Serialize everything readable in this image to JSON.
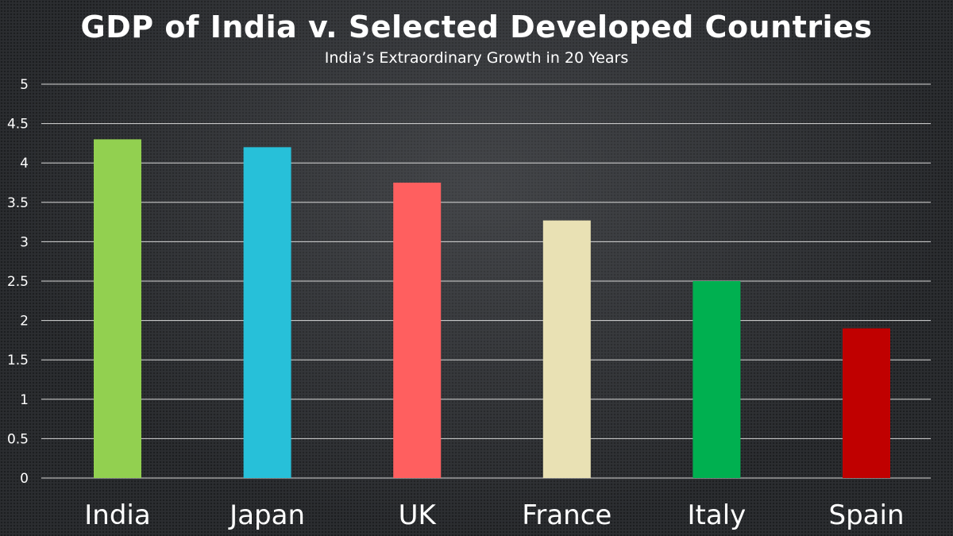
{
  "chart_data": {
    "type": "bar",
    "title": "GDP of India v. Selected Developed Countries",
    "subtitle": "India’s Extraordinary Growth in 20 Years",
    "xlabel": "",
    "ylabel": "",
    "ylim": [
      0,
      5
    ],
    "yticks": [
      "0",
      "0.5",
      "1",
      "1.5",
      "2",
      "2.5",
      "3",
      "3.5",
      "4",
      "4.5",
      "5"
    ],
    "grid": true,
    "categories": [
      "India",
      "Japan",
      "UK",
      "France",
      "Italy",
      "Spain"
    ],
    "values": [
      4.3,
      4.2,
      3.75,
      3.27,
      2.5,
      1.9
    ],
    "colors": [
      "#92d050",
      "#27c0d9",
      "#ff5f5f",
      "#e9e1b4",
      "#00b050",
      "#c00000"
    ]
  }
}
